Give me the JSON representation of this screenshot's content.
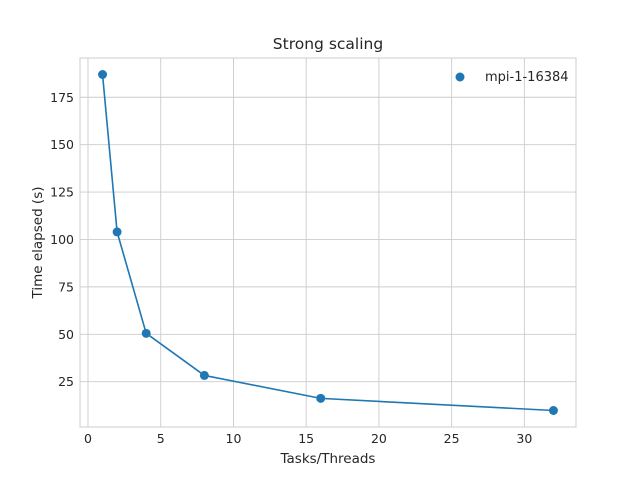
{
  "chart_data": {
    "type": "line",
    "title": "Strong scaling",
    "xlabel": "Tasks/Threads",
    "ylabel": "Time elapsed (s)",
    "xlim": [
      -0.55,
      33.55
    ],
    "ylim": [
      1.1,
      195.7
    ],
    "xticks": [
      0,
      5,
      10,
      15,
      20,
      25,
      30
    ],
    "yticks": [
      25,
      50,
      75,
      100,
      125,
      150,
      175
    ],
    "grid": true,
    "legend_position": "top-right",
    "series": [
      {
        "name": "mpi-1-16384",
        "color": "#1f77b4",
        "marker": "circle",
        "x": [
          1,
          2,
          4,
          8,
          16,
          32
        ],
        "y": [
          187,
          104,
          50.5,
          28.3,
          16.2,
          9.8
        ]
      }
    ]
  }
}
